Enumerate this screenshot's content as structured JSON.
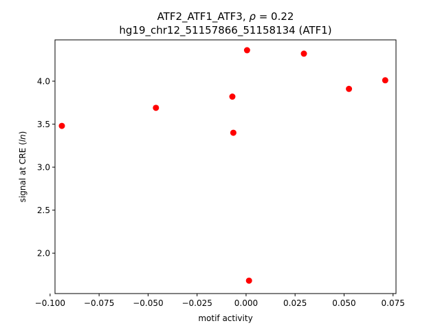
{
  "chart_data": {
    "type": "scatter",
    "title_line1_text": "ATF2_ATF1_ATF3, ",
    "title_line1_rho": "ρ",
    "title_line1_value": " = 0.22",
    "title_line2": "hg19_chr12_51157866_51158134 (ATF1)",
    "xlabel": "motif activity",
    "ylabel_text": "signal at CRE (",
    "ylabel_italic": "ln",
    "ylabel_close": ")",
    "xlim": [
      -0.0975,
      0.0765
    ],
    "ylim": [
      1.53,
      4.48
    ],
    "xticks": [
      -0.1,
      -0.075,
      -0.05,
      -0.025,
      0.0,
      0.025,
      0.05,
      0.075
    ],
    "xtick_labels": [
      "−0.100",
      "−0.075",
      "−0.050",
      "−0.025",
      "0.000",
      "0.025",
      "0.050",
      "0.075"
    ],
    "yticks": [
      2.0,
      2.5,
      3.0,
      3.5,
      4.0
    ],
    "ytick_labels": [
      "2.0",
      "2.5",
      "3.0",
      "3.5",
      "4.0"
    ],
    "marker_color": "#ff0000",
    "grid": false,
    "points": [
      {
        "x": -0.094,
        "y": 3.48
      },
      {
        "x": -0.046,
        "y": 3.69
      },
      {
        "x": -0.007,
        "y": 3.82
      },
      {
        "x": -0.0065,
        "y": 3.4
      },
      {
        "x": 0.0005,
        "y": 4.36
      },
      {
        "x": 0.0015,
        "y": 1.68
      },
      {
        "x": 0.0295,
        "y": 4.32
      },
      {
        "x": 0.0525,
        "y": 3.91
      },
      {
        "x": 0.071,
        "y": 4.01
      }
    ]
  }
}
